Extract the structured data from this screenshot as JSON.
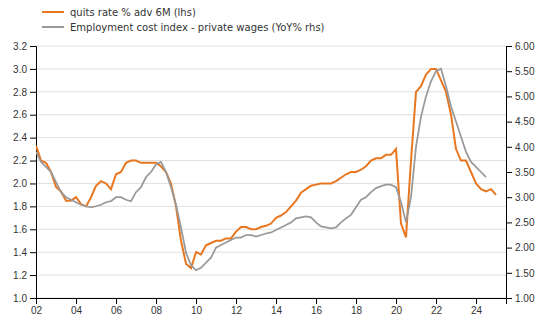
{
  "chart_data": {
    "type": "line",
    "x": [
      2002.0,
      2002.25,
      2002.5,
      2002.75,
      2003.0,
      2003.25,
      2003.5,
      2003.75,
      2004.0,
      2004.25,
      2004.5,
      2004.75,
      2005.0,
      2005.25,
      2005.5,
      2005.75,
      2006.0,
      2006.25,
      2006.5,
      2006.75,
      2007.0,
      2007.25,
      2007.5,
      2007.75,
      2008.0,
      2008.25,
      2008.5,
      2008.75,
      2009.0,
      2009.25,
      2009.5,
      2009.75,
      2010.0,
      2010.25,
      2010.5,
      2010.75,
      2011.0,
      2011.25,
      2011.5,
      2011.75,
      2012.0,
      2012.25,
      2012.5,
      2012.75,
      2013.0,
      2013.25,
      2013.5,
      2013.75,
      2014.0,
      2014.25,
      2014.5,
      2014.75,
      2015.0,
      2015.25,
      2015.5,
      2015.75,
      2016.0,
      2016.25,
      2016.5,
      2016.75,
      2017.0,
      2017.25,
      2017.5,
      2017.75,
      2018.0,
      2018.25,
      2018.5,
      2018.75,
      2019.0,
      2019.25,
      2019.5,
      2019.75,
      2020.0,
      2020.25,
      2020.5,
      2020.75,
      2021.0,
      2021.25,
      2021.5,
      2021.75,
      2022.0,
      2022.25,
      2022.5,
      2022.75,
      2023.0,
      2023.25,
      2023.5,
      2023.75,
      2024.0,
      2024.25,
      2024.5,
      2024.75,
      2025.0
    ],
    "series": [
      {
        "name": "quits rate % adv 6M (lhs)",
        "color": "#E87722",
        "values": [
          2.33,
          2.2,
          2.18,
          2.1,
          1.97,
          1.93,
          1.85,
          1.85,
          1.88,
          1.82,
          1.8,
          1.88,
          1.98,
          2.02,
          2.0,
          1.95,
          2.08,
          2.1,
          2.18,
          2.2,
          2.2,
          2.18,
          2.18,
          2.18,
          2.18,
          2.15,
          2.1,
          2.0,
          1.8,
          1.5,
          1.3,
          1.26,
          1.4,
          1.38,
          1.46,
          1.48,
          1.5,
          1.5,
          1.52,
          1.52,
          1.58,
          1.62,
          1.62,
          1.6,
          1.6,
          1.62,
          1.63,
          1.65,
          1.7,
          1.72,
          1.75,
          1.8,
          1.85,
          1.92,
          1.95,
          1.98,
          1.99,
          2.0,
          2.0,
          2.0,
          2.02,
          2.05,
          2.08,
          2.1,
          2.1,
          2.12,
          2.15,
          2.2,
          2.22,
          2.22,
          2.25,
          2.25,
          2.3,
          1.65,
          1.53,
          2.2,
          2.8,
          2.85,
          2.95,
          3.0,
          3.0,
          2.9,
          2.8,
          2.6,
          2.3,
          2.2,
          2.2,
          2.1,
          2.0,
          1.95,
          1.93,
          1.95,
          1.9
        ]
      },
      {
        "name": "Employment cost index - private wages (YoY% rhs)",
        "color": "#999999",
        "axis": "y2",
        "values": [
          3.9,
          3.7,
          3.6,
          3.5,
          3.3,
          3.1,
          3.0,
          2.95,
          2.9,
          2.85,
          2.82,
          2.8,
          2.82,
          2.85,
          2.9,
          2.92,
          3.0,
          3.0,
          2.95,
          2.92,
          3.1,
          3.2,
          3.4,
          3.5,
          3.65,
          3.7,
          3.5,
          3.2,
          2.85,
          2.4,
          1.9,
          1.65,
          1.55,
          1.6,
          1.7,
          1.8,
          2.0,
          2.05,
          2.1,
          2.15,
          2.2,
          2.2,
          2.25,
          2.25,
          2.22,
          2.25,
          2.28,
          2.3,
          2.35,
          2.4,
          2.45,
          2.5,
          2.58,
          2.6,
          2.62,
          2.6,
          2.5,
          2.42,
          2.4,
          2.38,
          2.4,
          2.5,
          2.58,
          2.65,
          2.8,
          2.95,
          3.0,
          3.1,
          3.18,
          3.22,
          3.25,
          3.25,
          3.2,
          2.9,
          2.5,
          3.0,
          4.0,
          4.6,
          5.0,
          5.3,
          5.5,
          5.55,
          5.2,
          4.8,
          4.5,
          4.2,
          3.9,
          3.7,
          3.6,
          3.5,
          3.4,
          null,
          null
        ]
      }
    ],
    "xlim": [
      2002,
      2025.5
    ],
    "xticks": [
      {
        "value": 2002,
        "label": "02"
      },
      {
        "value": 2004,
        "label": "04"
      },
      {
        "value": 2006,
        "label": "06"
      },
      {
        "value": 2008,
        "label": "08"
      },
      {
        "value": 2010,
        "label": "10"
      },
      {
        "value": 2012,
        "label": "12"
      },
      {
        "value": 2014,
        "label": "14"
      },
      {
        "value": 2016,
        "label": "16"
      },
      {
        "value": 2018,
        "label": "18"
      },
      {
        "value": 2020,
        "label": "20"
      },
      {
        "value": 2022,
        "label": "22"
      },
      {
        "value": 2024,
        "label": "24"
      }
    ],
    "ylim": [
      1.0,
      3.2
    ],
    "yticks": [
      {
        "value": 1.0,
        "label": "1.0"
      },
      1.2,
      1.4,
      1.6,
      1.8,
      {
        "value": 2.0,
        "label": "2.0"
      },
      2.2,
      2.4,
      2.6,
      2.8,
      {
        "value": 3.0,
        "label": "3.0"
      },
      3.2
    ],
    "y2lim": [
      1.0,
      6.0
    ],
    "y2ticks": [
      {
        "value": 1.0,
        "label": "1.00"
      },
      {
        "value": 1.5,
        "label": "1.50"
      },
      {
        "value": 2.0,
        "label": "2.00"
      },
      {
        "value": 2.5,
        "label": "2.50"
      },
      {
        "value": 3.0,
        "label": "3.00"
      },
      {
        "value": 3.5,
        "label": "3.50"
      },
      {
        "value": 4.0,
        "label": "4.00"
      },
      {
        "value": 4.5,
        "label": "4.50"
      },
      {
        "value": 5.0,
        "label": "5.00"
      },
      {
        "value": 5.5,
        "label": "5.50"
      },
      {
        "value": 6.0,
        "label": "6.00"
      }
    ],
    "grid": true,
    "legend": "top-left"
  }
}
